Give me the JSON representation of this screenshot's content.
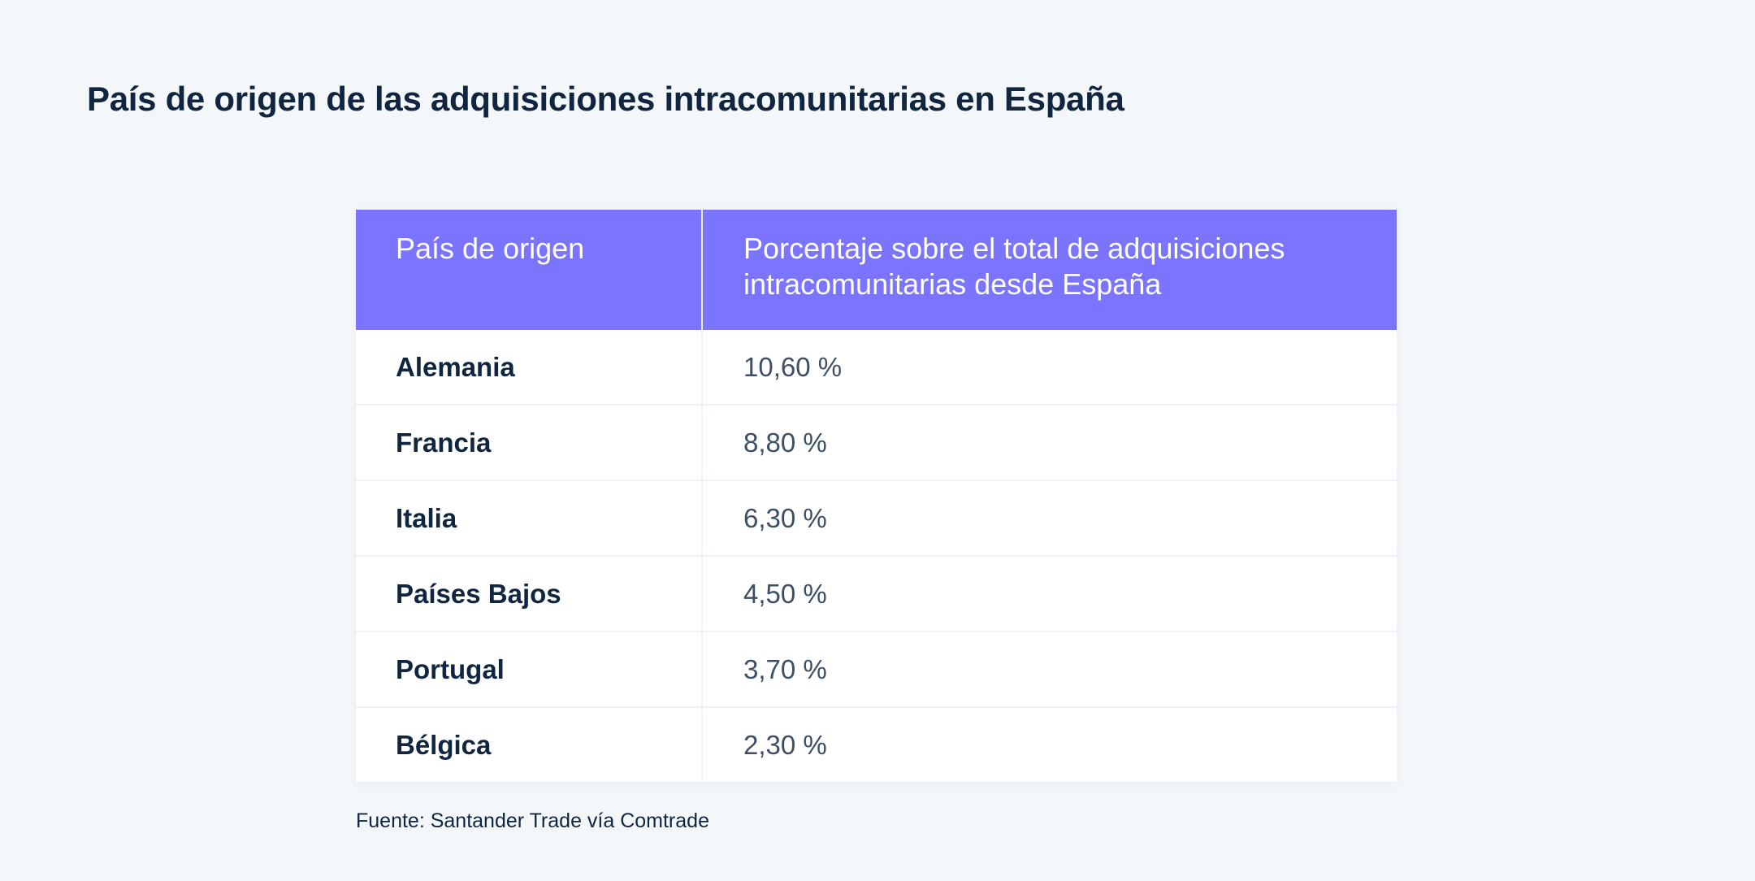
{
  "title": "País de origen de las adquisiciones intracomunitarias en España",
  "table": {
    "headers": [
      "País de origen",
      "Porcentaje sobre el total de adquisiciones intracomunitarias desde España"
    ],
    "rows": [
      {
        "country": "Alemania",
        "percent": "10,60 %"
      },
      {
        "country": "Francia",
        "percent": "8,80 %"
      },
      {
        "country": "Italia",
        "percent": "6,30 %"
      },
      {
        "country": "Países Bajos",
        "percent": "4,50 %"
      },
      {
        "country": "Portugal",
        "percent": "3,70 %"
      },
      {
        "country": "Bélgica",
        "percent": "2,30 %"
      }
    ]
  },
  "source": "Fuente: Santander Trade vía Comtrade",
  "colors": {
    "header_bg": "#7b74fe",
    "text": "#0f2540"
  }
}
